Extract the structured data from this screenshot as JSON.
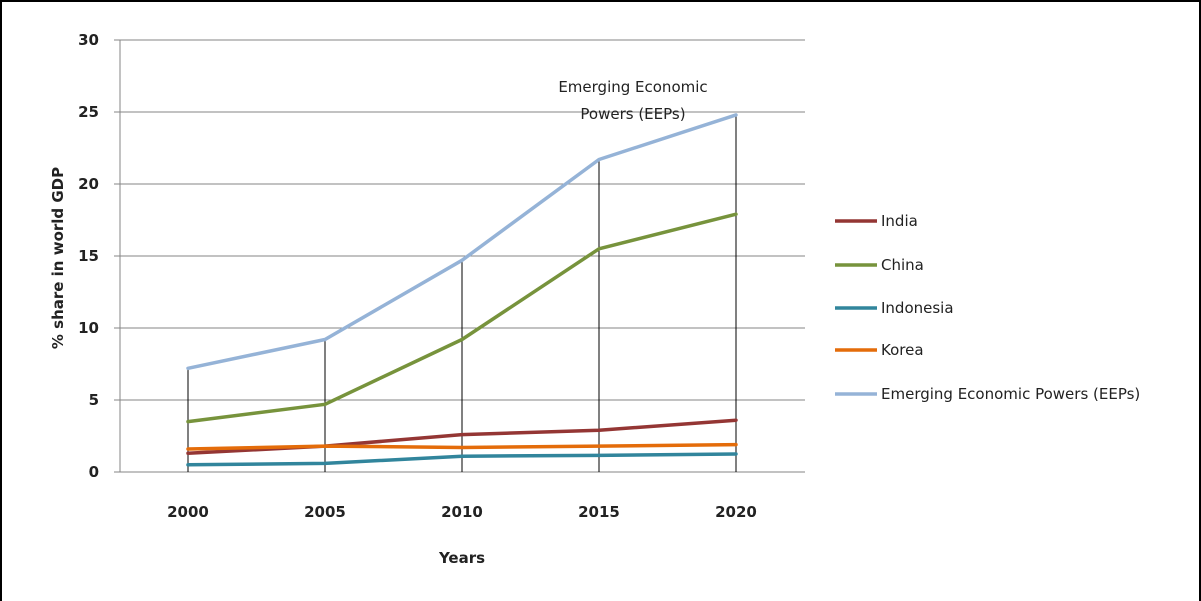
{
  "chart_data": {
    "type": "line",
    "title": "",
    "xlabel": "Years",
    "ylabel": "% share in world GDP",
    "x": [
      "2000",
      "2005",
      "2010",
      "2015",
      "2020"
    ],
    "ylim": [
      0,
      30
    ],
    "yticks": [
      "0",
      "5",
      "10",
      "15",
      "20",
      "25",
      "30"
    ],
    "grid": "horizontal",
    "legend_position": "right",
    "series": [
      {
        "name": "India",
        "color": "#943634",
        "values": [
          1.3,
          1.8,
          2.6,
          2.9,
          3.6
        ]
      },
      {
        "name": "China",
        "color": "#77933c",
        "values": [
          3.5,
          4.7,
          9.2,
          15.5,
          17.9
        ]
      },
      {
        "name": "Indonesia",
        "color": "#31859c",
        "values": [
          0.5,
          0.6,
          1.1,
          1.15,
          1.25
        ]
      },
      {
        "name": "Korea",
        "color": "#e46c0a",
        "values": [
          1.6,
          1.8,
          1.7,
          1.8,
          1.9
        ]
      },
      {
        "name": "Emerging Economic Powers (EEPs)",
        "color": "#95b3d7",
        "values": [
          7.2,
          9.2,
          14.7,
          21.7,
          24.8
        ]
      }
    ],
    "annotation": {
      "line1": "Emerging Economic",
      "line2": "Powers (EEPs)"
    }
  }
}
